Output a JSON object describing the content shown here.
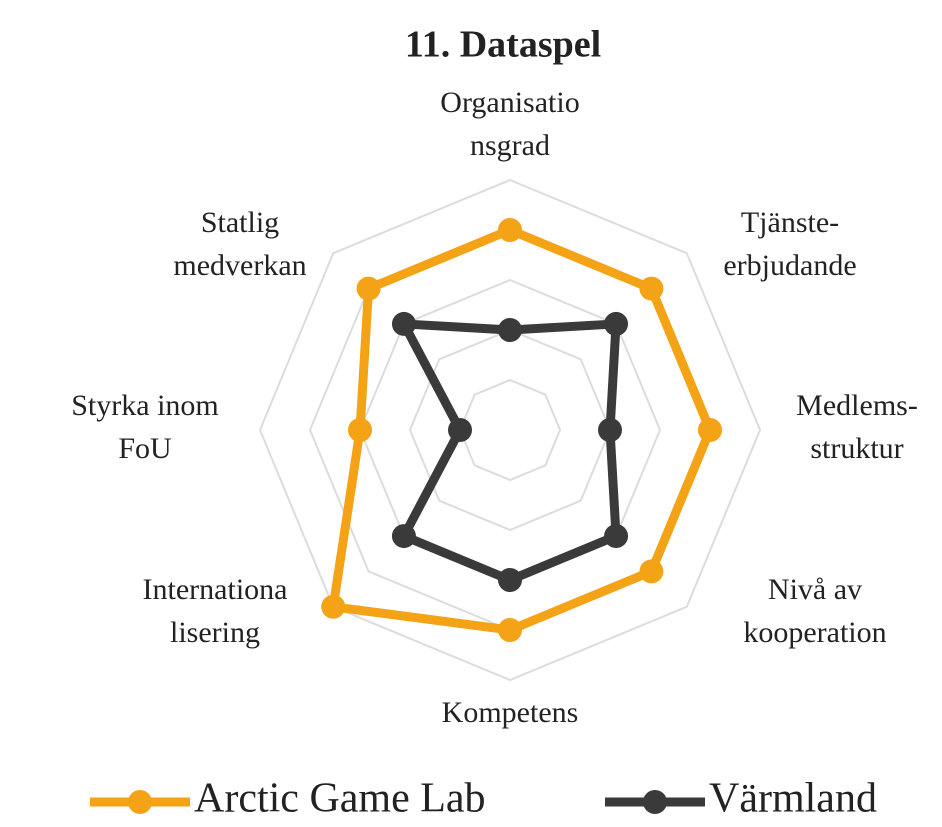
{
  "chart_data": {
    "type": "radar",
    "title": "11. Dataspel",
    "categories": [
      [
        "Organisatio",
        "nsgrad"
      ],
      [
        "Tjänste-",
        "erbjudande"
      ],
      [
        "Medlems-",
        "struktur"
      ],
      [
        "Nivå av",
        "kooperation"
      ],
      [
        "Kompetens"
      ],
      [
        "Internationa",
        "lisering"
      ],
      [
        "Styrka inom",
        "FoU"
      ],
      [
        "Statlig",
        "medverkan"
      ]
    ],
    "rlim": [
      0,
      5
    ],
    "rticks": [
      1,
      2,
      3,
      4,
      5
    ],
    "grid": true,
    "legend": "bottom",
    "series": [
      {
        "name": "Arctic Game Lab",
        "color": "#f5a316",
        "values": [
          4,
          4,
          4,
          4,
          4,
          5,
          3,
          4
        ]
      },
      {
        "name": "Värmland",
        "color": "#3a3a3a",
        "values": [
          2,
          3,
          2,
          3,
          3,
          3,
          1,
          3
        ]
      }
    ]
  }
}
